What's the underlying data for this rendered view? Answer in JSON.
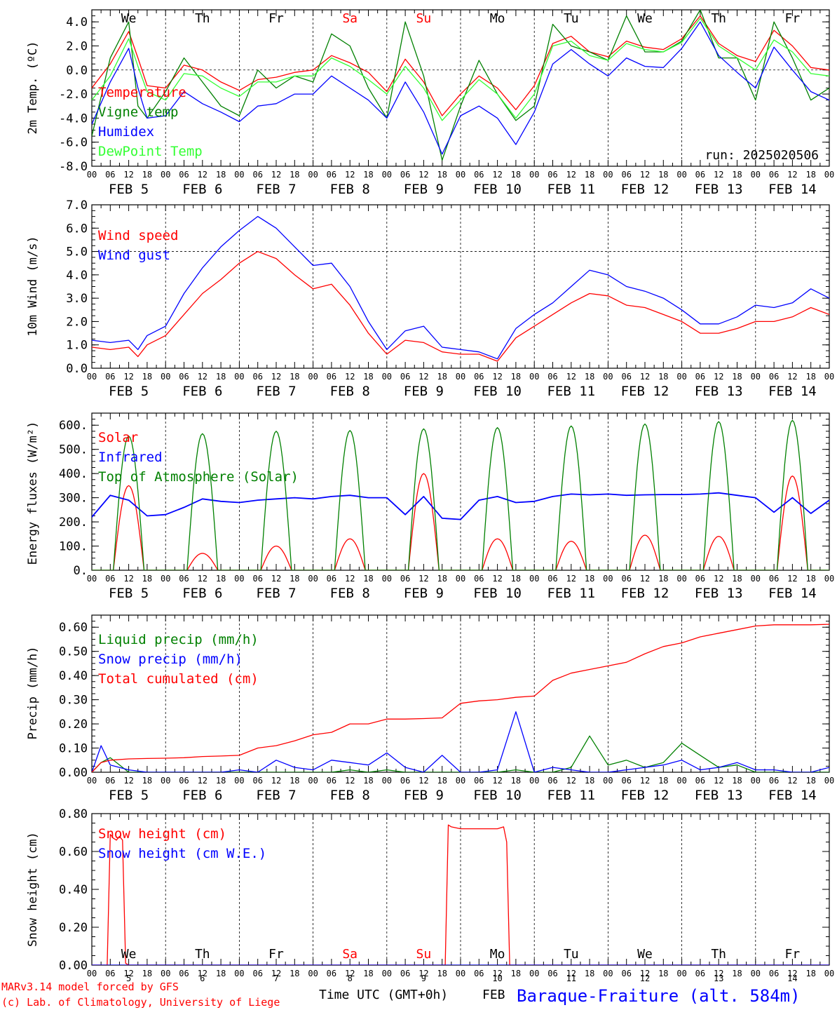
{
  "run_label": "run: 2025020506",
  "footer": {
    "model_line": "MARv3.14 model forced by GFS",
    "credit_line": "(c) Lab. of Climatology, University of Liege",
    "time_axis_label": "Time UTC (GMT+0h)",
    "month_label": "FEB",
    "station": "Baraque-Fraiture (alt. 584m)"
  },
  "hour_ticks": [
    "00",
    "06",
    "12",
    "18"
  ],
  "final_hour_tick": "00",
  "dates": [
    "FEB  5",
    "FEB  6",
    "FEB  7",
    "FEB  8",
    "FEB  9",
    "FEB 10",
    "FEB 11",
    "FEB 12",
    "FEB 13",
    "FEB 14"
  ],
  "day_numbers": [
    "5",
    "6",
    "7",
    "8",
    "9",
    "10",
    "11",
    "12",
    "13",
    "14"
  ],
  "weekdays": [
    "We",
    "Th",
    "Fr",
    "Sa",
    "Su",
    "Mo",
    "Tu",
    "We",
    "Th",
    "Fr"
  ],
  "weekend_color": "#ff0000",
  "weekday_color": "#000000",
  "chart_data": [
    {
      "id": "temperature",
      "type": "line",
      "ylabel": "2m Temp. (ºC)",
      "ylim": [
        -8,
        5
      ],
      "yticks": [
        "-8.0",
        "-6.0",
        "-4.0",
        "-2.0",
        "0.0",
        "2.0",
        "4.0"
      ],
      "yticks_values": [
        -8,
        -6,
        -4,
        -2,
        0,
        2,
        4
      ],
      "ref_line": 0,
      "x_hours": [
        0,
        6,
        12,
        15,
        18,
        24,
        30,
        36,
        42,
        48,
        54,
        60,
        66,
        72,
        78,
        84,
        90,
        96,
        102,
        108,
        114,
        120,
        126,
        132,
        138,
        144,
        150,
        156,
        162,
        168,
        174,
        180,
        186,
        192,
        198,
        204,
        210,
        216,
        222,
        228,
        234,
        240
      ],
      "series": [
        {
          "name": "Temperature",
          "color": "#ff0000",
          "values": [
            -1.5,
            0.5,
            3.2,
            1.0,
            -1.3,
            -1.5,
            0.4,
            0.0,
            -1.0,
            -1.7,
            -0.8,
            -0.6,
            -0.2,
            0.0,
            1.2,
            0.6,
            -0.2,
            -1.8,
            0.9,
            -1.0,
            -3.8,
            -2.0,
            -0.5,
            -1.5,
            -3.3,
            -1.3,
            2.2,
            2.8,
            1.5,
            1.1,
            2.4,
            1.9,
            1.7,
            2.6,
            4.5,
            2.2,
            1.2,
            0.7,
            3.3,
            2.0,
            0.2,
            0.0
          ]
        },
        {
          "name": "Vigne temp",
          "color": "#008000",
          "values": [
            -5.5,
            1.0,
            4.0,
            -3.0,
            -4.0,
            -1.8,
            1.0,
            -1.0,
            -3.0,
            -3.8,
            0.0,
            -1.5,
            -0.5,
            -1.0,
            3.0,
            2.0,
            -1.5,
            -4.0,
            4.0,
            -0.5,
            -7.5,
            -3.0,
            0.8,
            -2.0,
            -4.2,
            -3.0,
            3.8,
            2.0,
            1.5,
            0.8,
            4.5,
            1.5,
            1.5,
            2.4,
            5.0,
            1.0,
            1.0,
            -2.5,
            4.0,
            1.0,
            -2.5,
            -1.5
          ]
        },
        {
          "name": "Humidex",
          "color": "#0000ff",
          "values": [
            -4.5,
            -1.0,
            1.8,
            -1.5,
            -4.0,
            -3.8,
            -1.8,
            -2.8,
            -3.5,
            -4.3,
            -3.0,
            -2.8,
            -2.0,
            -2.0,
            -0.5,
            -1.5,
            -2.5,
            -4.0,
            -1.0,
            -3.5,
            -7.0,
            -3.8,
            -3.0,
            -4.0,
            -6.2,
            -3.5,
            0.5,
            1.7,
            0.5,
            -0.5,
            1.0,
            0.3,
            0.2,
            1.8,
            4.0,
            1.2,
            -0.2,
            -1.5,
            1.9,
            0.0,
            -1.8,
            -2.5
          ]
        },
        {
          "name": "DewPoint Temp",
          "color": "#33ff33",
          "values": [
            -2.5,
            -0.5,
            2.6,
            0.3,
            -1.8,
            -2.5,
            -0.3,
            -0.5,
            -1.5,
            -2.2,
            -1.0,
            -1.0,
            -0.5,
            -0.5,
            1.0,
            0.3,
            -0.8,
            -2.0,
            0.3,
            -1.5,
            -4.2,
            -2.5,
            -0.8,
            -2.0,
            -4.0,
            -2.0,
            2.0,
            2.4,
            1.2,
            0.8,
            2.2,
            1.7,
            1.5,
            2.3,
            4.3,
            2.0,
            1.0,
            0.0,
            2.5,
            1.5,
            -0.3,
            -0.5
          ]
        }
      ]
    },
    {
      "id": "wind",
      "type": "line",
      "ylabel": "10m Wind (m/s)",
      "ylim": [
        0,
        7
      ],
      "yticks": [
        "0.0",
        "1.0",
        "2.0",
        "3.0",
        "4.0",
        "5.0",
        "6.0",
        "7.0"
      ],
      "yticks_values": [
        0,
        1,
        2,
        3,
        4,
        5,
        6,
        7
      ],
      "ref_line": 5,
      "x_hours": [
        0,
        6,
        12,
        15,
        18,
        24,
        30,
        36,
        42,
        48,
        54,
        60,
        66,
        72,
        78,
        84,
        90,
        96,
        102,
        108,
        114,
        120,
        126,
        132,
        138,
        144,
        150,
        156,
        162,
        168,
        174,
        180,
        186,
        192,
        198,
        204,
        210,
        216,
        222,
        228,
        234,
        240
      ],
      "series": [
        {
          "name": "Wind speed",
          "color": "#ff0000",
          "values": [
            0.9,
            0.8,
            0.9,
            0.5,
            1.0,
            1.4,
            2.3,
            3.2,
            3.8,
            4.5,
            5.0,
            4.7,
            4.0,
            3.4,
            3.6,
            2.7,
            1.5,
            0.6,
            1.2,
            1.1,
            0.7,
            0.6,
            0.6,
            0.3,
            1.3,
            1.8,
            2.3,
            2.8,
            3.2,
            3.1,
            2.7,
            2.6,
            2.3,
            2.0,
            1.5,
            1.5,
            1.7,
            2.0,
            2.0,
            2.2,
            2.6,
            2.3
          ]
        },
        {
          "name": "Wind gust",
          "color": "#0000ff",
          "values": [
            1.2,
            1.1,
            1.2,
            0.8,
            1.4,
            1.8,
            3.2,
            4.3,
            5.2,
            5.9,
            6.5,
            6.0,
            5.2,
            4.4,
            4.5,
            3.5,
            2.0,
            0.8,
            1.6,
            1.8,
            0.9,
            0.8,
            0.7,
            0.4,
            1.7,
            2.3,
            2.8,
            3.5,
            4.2,
            4.0,
            3.5,
            3.3,
            3.0,
            2.5,
            1.9,
            1.9,
            2.2,
            2.7,
            2.6,
            2.8,
            3.4,
            3.0
          ]
        }
      ]
    },
    {
      "id": "energy",
      "type": "line",
      "ylabel": "Energy fluxes (W/m²)",
      "ylim": [
        0,
        650
      ],
      "yticks": [
        "0.",
        "100.",
        "200.",
        "300.",
        "400.",
        "500.",
        "600."
      ],
      "yticks_values": [
        0,
        100,
        200,
        300,
        400,
        500,
        600
      ],
      "day_start_hour": 7,
      "day_end_hour": 17,
      "series": [
        {
          "name": "Solar",
          "color": "#ff0000",
          "peaks": [
            350,
            70,
            100,
            130,
            400,
            130,
            120,
            145,
            140,
            390
          ]
        },
        {
          "name": "Infrared",
          "color": "#0000ff",
          "x_hours": [
            0,
            6,
            12,
            18,
            24,
            30,
            36,
            42,
            48,
            54,
            60,
            66,
            72,
            78,
            84,
            90,
            96,
            102,
            108,
            114,
            120,
            126,
            132,
            138,
            144,
            150,
            156,
            162,
            168,
            174,
            180,
            186,
            192,
            198,
            204,
            210,
            216,
            222,
            228,
            234,
            240
          ],
          "values": [
            220,
            310,
            290,
            225,
            230,
            260,
            295,
            285,
            280,
            290,
            295,
            300,
            295,
            305,
            310,
            300,
            300,
            230,
            305,
            215,
            210,
            290,
            305,
            280,
            285,
            305,
            315,
            312,
            315,
            310,
            312,
            313,
            313,
            315,
            320,
            310,
            300,
            240,
            300,
            235,
            290
          ]
        },
        {
          "name": "Top of Atmosphere (Solar)",
          "color": "#008000",
          "peaks": [
            555,
            565,
            575,
            578,
            585,
            590,
            597,
            605,
            615,
            620
          ]
        }
      ]
    },
    {
      "id": "precip",
      "type": "line",
      "ylabel": "Precip (mm/h)",
      "ylim": [
        0,
        0.65
      ],
      "yticks": [
        "0.00",
        "0.10",
        "0.20",
        "0.30",
        "0.40",
        "0.50",
        "0.60"
      ],
      "yticks_values": [
        0,
        0.1,
        0.2,
        0.3,
        0.4,
        0.5,
        0.6
      ],
      "x_hours": [
        0,
        3,
        6,
        12,
        18,
        24,
        30,
        36,
        42,
        48,
        54,
        60,
        66,
        72,
        78,
        84,
        90,
        96,
        102,
        108,
        114,
        120,
        126,
        132,
        138,
        144,
        150,
        156,
        162,
        168,
        174,
        180,
        186,
        192,
        198,
        204,
        210,
        216,
        222,
        228,
        234,
        240
      ],
      "series": [
        {
          "name": "Liquid precip (mm/h)",
          "color": "#008000",
          "values": [
            0,
            0.04,
            0.06,
            0,
            0,
            0,
            0,
            0,
            0,
            0,
            0,
            0,
            0,
            0,
            0,
            0.01,
            0,
            0.01,
            0,
            0,
            0,
            0,
            0,
            0,
            0.01,
            0,
            0,
            0.02,
            0.15,
            0.03,
            0.05,
            0.02,
            0.04,
            0.12,
            0.07,
            0.02,
            0.03,
            0,
            0,
            0,
            0,
            0
          ]
        },
        {
          "name": "Snow precip (mm/h)",
          "color": "#0000ff",
          "values": [
            0,
            0.11,
            0.03,
            0.01,
            0,
            0,
            0,
            0,
            0,
            0.01,
            0,
            0.05,
            0.02,
            0.01,
            0.05,
            0.04,
            0.03,
            0.08,
            0.02,
            0,
            0.07,
            0,
            0,
            0.01,
            0.25,
            0,
            0.02,
            0.01,
            0,
            0,
            0.01,
            0.02,
            0.03,
            0.05,
            0.01,
            0.02,
            0.04,
            0.01,
            0.01,
            0,
            0,
            0.02
          ]
        },
        {
          "name": "Total cumulated (cm)",
          "color": "#ff0000",
          "values": [
            0,
            0.04,
            0.05,
            0.055,
            0.057,
            0.058,
            0.06,
            0.065,
            0.067,
            0.07,
            0.1,
            0.11,
            0.13,
            0.155,
            0.165,
            0.2,
            0.2,
            0.22,
            0.22,
            0.222,
            0.225,
            0.285,
            0.295,
            0.3,
            0.31,
            0.315,
            0.38,
            0.41,
            0.425,
            0.44,
            0.455,
            0.49,
            0.52,
            0.535,
            0.56,
            0.575,
            0.59,
            0.605,
            0.61,
            0.61,
            0.61,
            0.612
          ]
        }
      ]
    },
    {
      "id": "snow",
      "type": "line",
      "ylabel": "Snow height (cm)",
      "ylim": [
        0,
        0.8
      ],
      "yticks": [
        "0.00",
        "0.20",
        "0.40",
        "0.60",
        "0.80"
      ],
      "yticks_values": [
        0,
        0.2,
        0.4,
        0.6,
        0.8
      ],
      "series": [
        {
          "name": "Snow height (cm)",
          "color": "#ff0000",
          "x_hours": [
            0,
            5,
            6,
            7,
            8,
            9,
            10,
            11,
            12,
            13,
            114,
            115,
            116,
            117,
            120,
            126,
            132,
            134,
            135,
            136,
            240
          ],
          "values": [
            0,
            0,
            0.69,
            0.67,
            0.66,
            0.68,
            0.66,
            0.01,
            0,
            0,
            0,
            0,
            0.74,
            0.73,
            0.72,
            0.72,
            0.72,
            0.73,
            0.65,
            0,
            0
          ]
        },
        {
          "name": "Snow height (cm W.E.)",
          "color": "#0000ff",
          "x_hours": [
            0,
            240
          ],
          "values": [
            0,
            0
          ]
        }
      ]
    }
  ]
}
